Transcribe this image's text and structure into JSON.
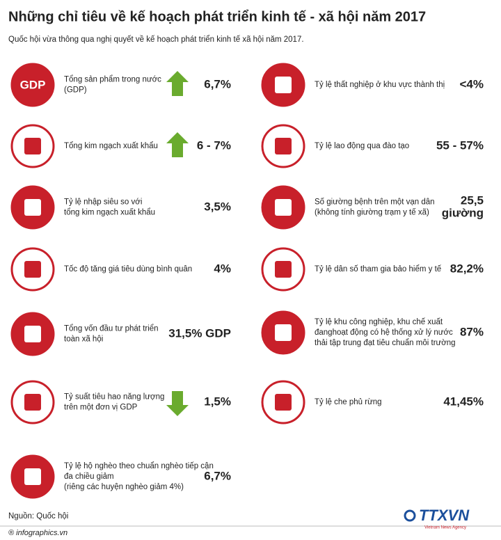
{
  "header": {
    "title": "Những chỉ tiêu về kế hoạch phát triển kinh tế - xã hội năm 2017",
    "subtitle": "Quốc hội vừa thông qua nghị quyết về kế hoạch phát triển kinh tế xã hội năm 2017."
  },
  "left_items": [
    {
      "icon_text": "GDP",
      "lines": [
        "Tổng sản phẩm trong nước",
        "(GDP)"
      ],
      "value": [
        "6,7%"
      ],
      "trend": "up"
    },
    {
      "lines": [
        "Tổng kim ngạch xuất khẩu"
      ],
      "value": [
        "6 - 7%"
      ],
      "trend": "up"
    },
    {
      "lines": [
        "Tỷ lệ nhập siêu so với",
        "tổng kim ngạch xuất khẩu"
      ],
      "value": [
        "3,5%"
      ]
    },
    {
      "lines": [
        "Tốc độ tăng giá tiêu dùng bình quân"
      ],
      "value": [
        "4%"
      ]
    },
    {
      "lines": [
        "Tổng vốn đầu tư phát triển",
        "toàn xã hội"
      ],
      "value": [
        "31,5% GDP"
      ]
    },
    {
      "lines": [
        "Tỷ suất tiêu hao năng lượng",
        "trên một đơn vị GDP"
      ],
      "value": [
        "1,5%"
      ],
      "trend": "down"
    },
    {
      "lines": [
        "Tỷ lệ hộ nghèo theo chuẩn nghèo tiếp cận",
        "đa chiều giảm",
        "(riêng các huyện nghèo giảm 4%)"
      ],
      "value": [
        "6,7%"
      ]
    }
  ],
  "right_items": [
    {
      "lines": [
        "Tỷ lệ thất nghiệp ở khu vực thành thị"
      ],
      "value": [
        "<4%"
      ]
    },
    {
      "lines": [
        "Tỷ lệ lao động qua đào tạo"
      ],
      "value": [
        "55 - 57%"
      ]
    },
    {
      "lines": [
        "Số giường bệnh trên một vạn dân",
        "(không tính giường trạm y tế xã)"
      ],
      "value": [
        "25,5",
        "giường"
      ]
    },
    {
      "lines": [
        "Tỷ lệ dân số tham gia bảo hiểm y tế"
      ],
      "value": [
        "82,2%"
      ]
    },
    {
      "lines": [
        "Tỷ lệ khu công nghiệp, khu chế xuất",
        "đanghoạt động có hệ thống xử lý nước",
        "thải tập trung đạt tiêu chuẩn môi trường"
      ],
      "value": [
        "87%"
      ]
    },
    {
      "lines": [
        "Tỷ lệ che phủ rừng"
      ],
      "value": [
        "41,45%"
      ]
    }
  ],
  "footer": {
    "source": "Nguồn: Quốc hội",
    "site": "® infographics.vn",
    "logo": "TTXVN",
    "agency": "Vietnam News Agency"
  }
}
